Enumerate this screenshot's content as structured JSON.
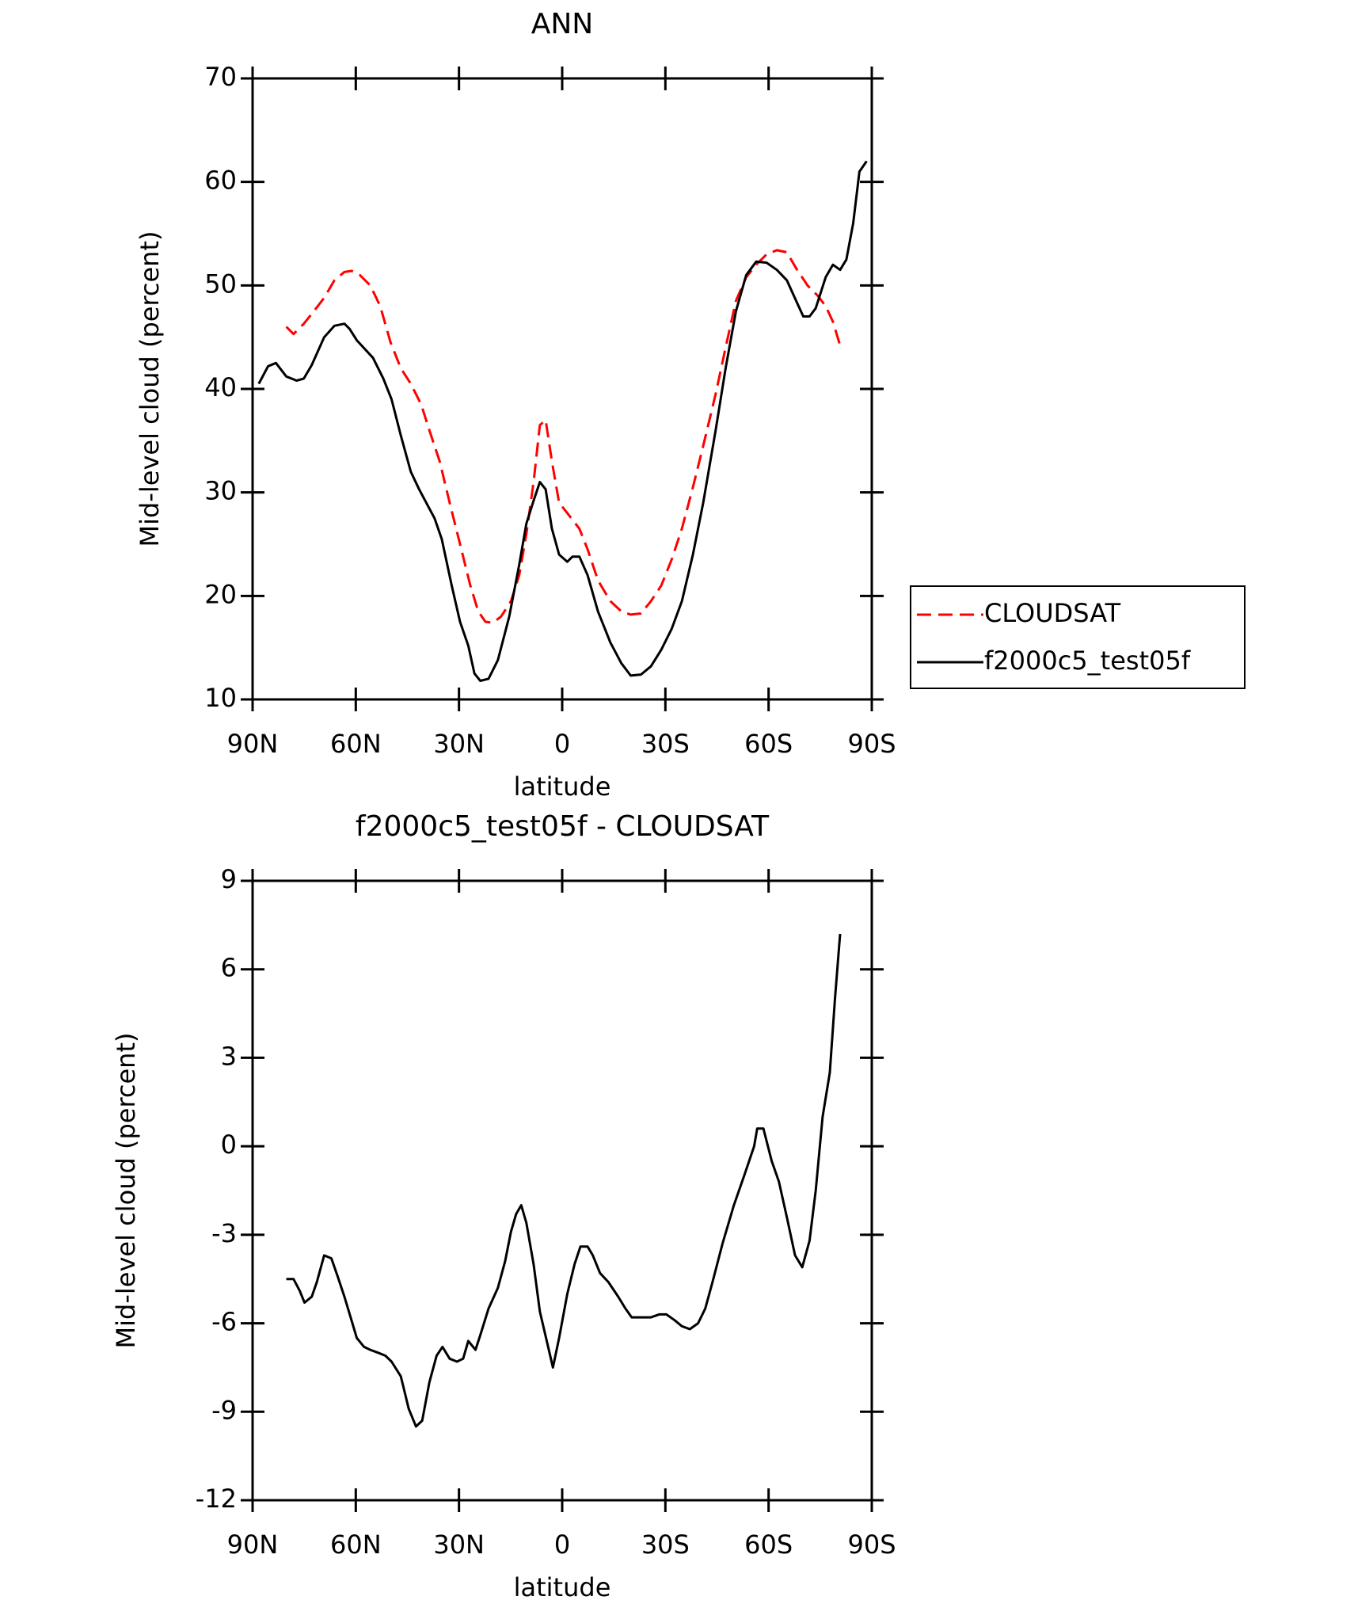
{
  "chart_data": [
    {
      "type": "line",
      "title": "ANN",
      "xlabel": "latitude",
      "ylabel": "Mid-level cloud (percent)",
      "xlim": [
        90,
        -90
      ],
      "xticks": [
        {
          "value": 90,
          "label": "90N"
        },
        {
          "value": 60,
          "label": "60N"
        },
        {
          "value": 30,
          "label": "30N"
        },
        0,
        {
          "value": -30,
          "label": "30S"
        },
        {
          "value": -60,
          "label": "60S"
        },
        {
          "value": -90,
          "label": "90S"
        }
      ],
      "ylim": [
        10,
        70
      ],
      "yticks": [
        10,
        20,
        30,
        40,
        50,
        60,
        70
      ],
      "legend": "right",
      "series": [
        {
          "name": "CLOUDSAT",
          "color": "#ff0000",
          "dash": true,
          "x": [
            80.2,
            78.1,
            75.1,
            72.2,
            69.2,
            66.2,
            63.3,
            61.2,
            58.8,
            55.8,
            52.9,
            49.9,
            46.9,
            44.0,
            41.0,
            38.6,
            35.6,
            32.7,
            29.7,
            26.7,
            24.4,
            22.3,
            20.2,
            17.8,
            14.9,
            12.5,
            10.4,
            8.3,
            6.5,
            4.8,
            3.0,
            0.9,
            -1.5,
            -5.0,
            -7.4,
            -10.4,
            -14.0,
            -17.2,
            -19.9,
            -22.9,
            -25.8,
            -28.8,
            -31.8,
            -34.8,
            -38.0,
            -41.0,
            -44.6,
            -47.5,
            -50.5,
            -53.5,
            -56.4,
            -59.4,
            -62.4,
            -65.3,
            -68.3,
            -71.3,
            -74.3,
            -76.6,
            -78.7,
            -80.8
          ],
          "values": [
            46,
            45.3,
            46.3,
            47.5,
            48.8,
            50.5,
            51.3,
            51.4,
            51.0,
            50.0,
            48.0,
            44.5,
            42.0,
            40.5,
            38.5,
            36,
            33,
            29,
            25,
            21,
            18.5,
            17.5,
            17.4,
            18,
            19.5,
            22,
            26,
            31,
            36.5,
            37,
            33,
            29,
            28,
            26.5,
            24.5,
            21.5,
            19.5,
            18.5,
            18.2,
            18.3,
            19.5,
            21,
            23.5,
            26.5,
            30.5,
            34.5,
            39.5,
            44,
            48.5,
            50.8,
            52,
            53,
            53.4,
            53.2,
            51.5,
            50,
            49,
            48,
            46.5,
            44.2
          ]
        },
        {
          "name": "f2000c5_test05f",
          "color": "#000000",
          "dash": false,
          "x": [
            88.2,
            85.5,
            83.2,
            80.2,
            77.2,
            75.1,
            72.8,
            69.2,
            66.2,
            63.3,
            61.8,
            59.7,
            55.0,
            52.0,
            49.6,
            46.9,
            44.0,
            41.6,
            37.1,
            35.0,
            32.1,
            29.7,
            27.3,
            25.5,
            23.8,
            21.4,
            18.7,
            15.4,
            12.5,
            10.4,
            8.3,
            6.5,
            4.8,
            3.0,
            0.9,
            -1.5,
            -3.0,
            -5.0,
            -7.4,
            -10.4,
            -14.0,
            -17.2,
            -19.9,
            -22.9,
            -25.8,
            -28.8,
            -31.8,
            -34.8,
            -38.0,
            -41.0,
            -44.6,
            -47.5,
            -50.5,
            -53.5,
            -56.4,
            -59.4,
            -62.4,
            -65.3,
            -68.3,
            -70.1,
            -71.9,
            -73.7,
            -76.6,
            -78.7,
            -80.8,
            -82.6,
            -84.6,
            -86.4,
            -88.5
          ],
          "values": [
            40.5,
            42.2,
            42.5,
            41.2,
            40.8,
            41.0,
            42.3,
            45.0,
            46.1,
            46.3,
            45.8,
            44.7,
            43.0,
            41.0,
            39.0,
            35.5,
            32.0,
            30.3,
            27.5,
            25.5,
            21.0,
            17.5,
            15.2,
            12.5,
            11.8,
            12.0,
            13.8,
            18,
            23,
            27,
            29.2,
            31,
            30.3,
            26.5,
            24.0,
            23.3,
            23.8,
            23.8,
            22.0,
            18.5,
            15.5,
            13.5,
            12.3,
            12.4,
            13.2,
            14.8,
            16.8,
            19.5,
            24.0,
            29.0,
            36.0,
            42.0,
            47.5,
            51.0,
            52.3,
            52.2,
            51.5,
            50.5,
            48.3,
            47.0,
            47.0,
            47.8,
            50.8,
            52.0,
            51.5,
            52.5,
            56,
            61,
            62
          ]
        }
      ]
    },
    {
      "type": "line",
      "title": "f2000c5_test05f - CLOUDSAT",
      "xlabel": "latitude",
      "ylabel": "Mid-level cloud (percent)",
      "xlim": [
        90,
        -90
      ],
      "xticks": [
        {
          "value": 90,
          "label": "90N"
        },
        {
          "value": 60,
          "label": "60N"
        },
        {
          "value": 30,
          "label": "30N"
        },
        0,
        {
          "value": -30,
          "label": "30S"
        },
        {
          "value": -60,
          "label": "60S"
        },
        {
          "value": -90,
          "label": "90S"
        }
      ],
      "ylim": [
        -12,
        9
      ],
      "yticks": [
        -12,
        -9,
        -6,
        -3,
        0,
        3,
        6,
        9
      ],
      "series": [
        {
          "color": "#000000",
          "dash": false,
          "x": [
            80.2,
            78.1,
            76.3,
            74.9,
            72.8,
            71.3,
            69.2,
            67.1,
            65.3,
            63.3,
            61.5,
            59.7,
            57.6,
            55.8,
            53.5,
            51.4,
            49.6,
            46.9,
            44.6,
            42.5,
            40.7,
            38.6,
            36.5,
            34.8,
            32.7,
            30.6,
            28.8,
            27.3,
            25.2,
            23.8,
            21.4,
            18.7,
            16.6,
            14.9,
            13.4,
            11.9,
            10.4,
            8.3,
            6.5,
            4.5,
            2.7,
            0.9,
            -1.5,
            -3.6,
            -5.3,
            -7.4,
            -8.9,
            -11.0,
            -13.4,
            -16.3,
            -18.4,
            -20.2,
            -22.9,
            -25.8,
            -28.2,
            -30.3,
            -32.7,
            -34.8,
            -37.1,
            -39.5,
            -41.6,
            -43.7,
            -46.6,
            -49.9,
            -52.9,
            -55.8,
            -56.7,
            -58.5,
            -60.9,
            -63.0,
            -65.3,
            -67.7,
            -69.8,
            -71.9,
            -73.7,
            -75.7,
            -77.8,
            -79.3,
            -80.8
          ],
          "values": [
            -4.5,
            -4.5,
            -4.9,
            -5.3,
            -5.1,
            -4.6,
            -3.7,
            -3.8,
            -4.4,
            -5.1,
            -5.8,
            -6.5,
            -6.8,
            -6.9,
            -7.0,
            -7.1,
            -7.3,
            -7.8,
            -8.9,
            -9.5,
            -9.3,
            -8.0,
            -7.1,
            -6.8,
            -7.2,
            -7.3,
            -7.2,
            -6.6,
            -6.9,
            -6.4,
            -5.5,
            -4.8,
            -3.9,
            -2.9,
            -2.3,
            -2.0,
            -2.6,
            -4.0,
            -5.6,
            -6.6,
            -7.5,
            -6.5,
            -5.0,
            -4.0,
            -3.4,
            -3.4,
            -3.7,
            -4.3,
            -4.6,
            -5.1,
            -5.5,
            -5.8,
            -5.8,
            -5.8,
            -5.7,
            -5.7,
            -5.9,
            -6.1,
            -6.2,
            -6.0,
            -5.5,
            -4.6,
            -3.3,
            -2.0,
            -1.0,
            0.0,
            0.6,
            0.6,
            -0.5,
            -1.2,
            -2.4,
            -3.7,
            -4.1,
            -3.2,
            -1.5,
            1.0,
            2.5,
            5,
            7.2
          ]
        }
      ]
    }
  ]
}
